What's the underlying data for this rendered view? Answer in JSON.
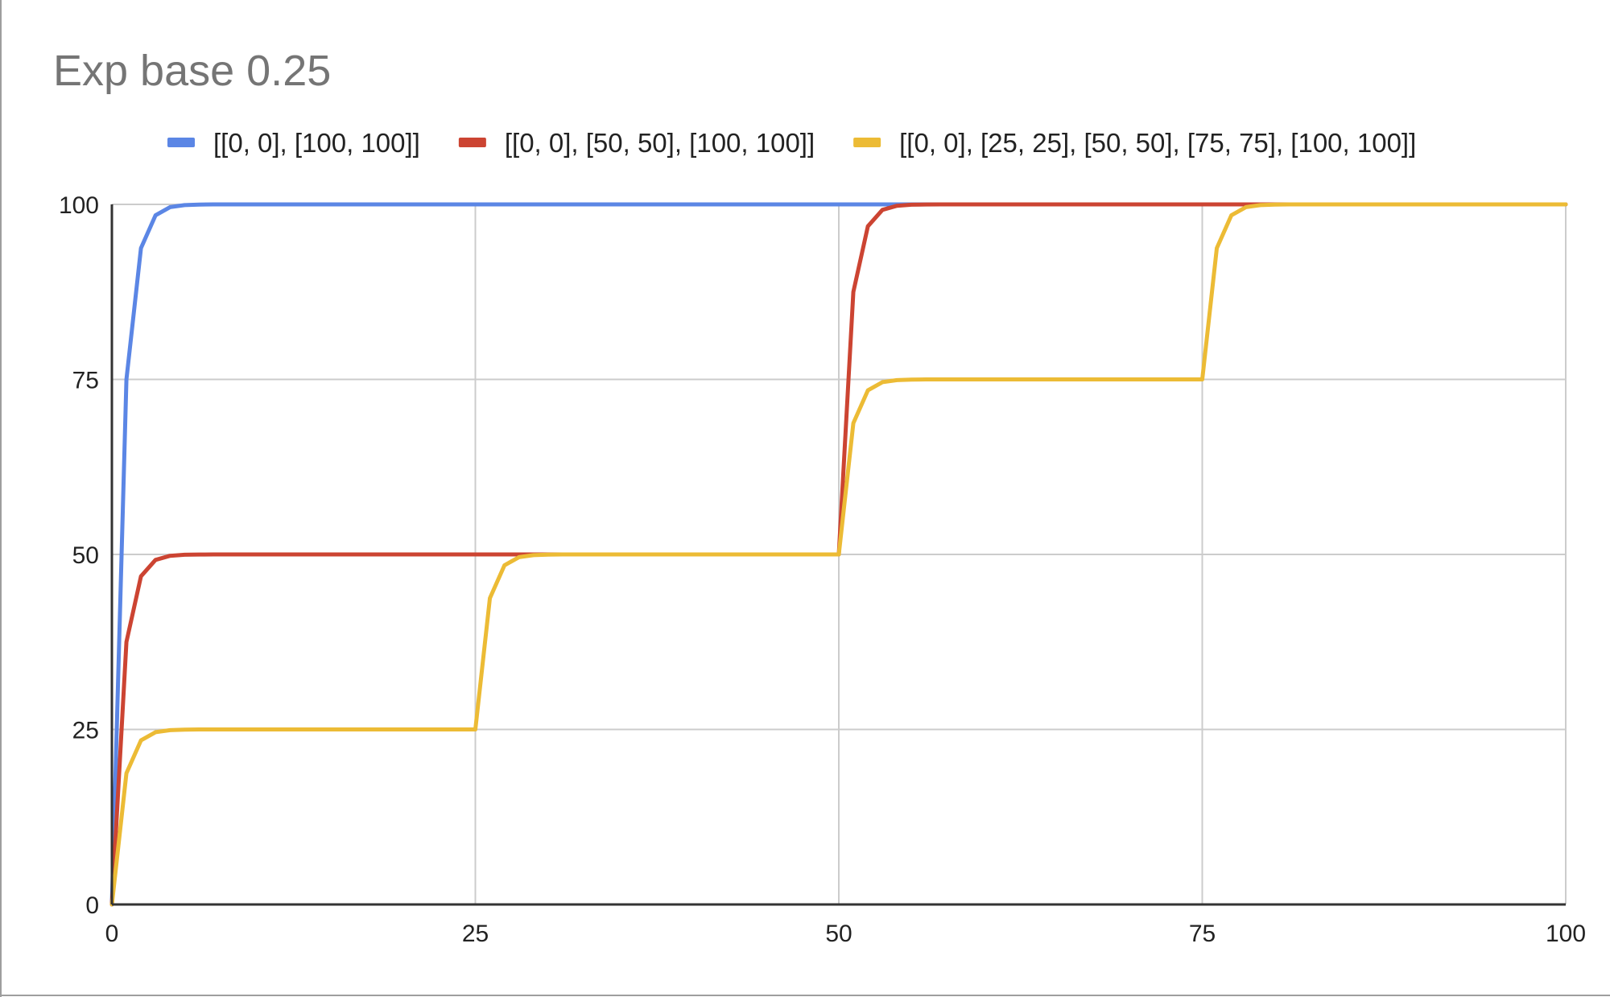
{
  "chart_data": {
    "type": "line",
    "title": "Exp base 0.25",
    "xlabel": "",
    "ylabel": "",
    "xlim": [
      0,
      100
    ],
    "ylim": [
      0,
      100
    ],
    "grid": true,
    "legend_position": "top",
    "x_ticks": [
      "0",
      "25",
      "50",
      "75",
      "100"
    ],
    "y_ticks": [
      "0",
      "25",
      "50",
      "75",
      "100"
    ],
    "series": [
      {
        "name": "[[0, 0], [100, 100]]",
        "color": "#5b86e5",
        "anchors": [
          [
            0,
            0
          ],
          [
            100,
            100
          ]
        ]
      },
      {
        "name": "[[0, 0], [50, 50], [100, 100]]",
        "color": "#cc4432",
        "anchors": [
          [
            0,
            0
          ],
          [
            50,
            50
          ],
          [
            100,
            100
          ]
        ]
      },
      {
        "name": "[[0, 0], [25, 25], [50, 50], [75, 75], [100, 100]]",
        "color": "#ecbb35",
        "anchors": [
          [
            0,
            0
          ],
          [
            25,
            25
          ],
          [
            50,
            50
          ],
          [
            75,
            75
          ],
          [
            100,
            100
          ]
        ]
      }
    ],
    "exp_base": 0.25,
    "sample_step": 1
  }
}
